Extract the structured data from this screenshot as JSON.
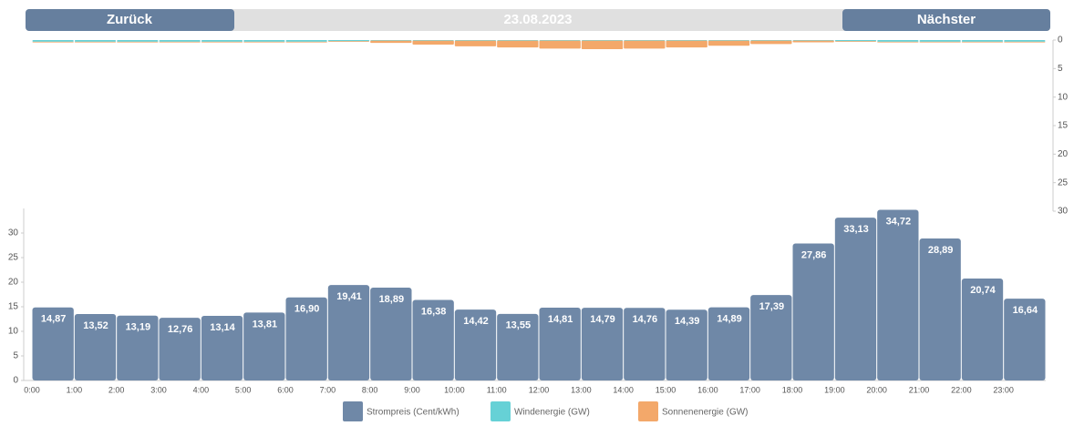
{
  "nav": {
    "back": "Zurück",
    "date": "23.08.2023",
    "next": "Nächster"
  },
  "chart_data": [
    {
      "type": "bar",
      "stacked": true,
      "inverted": true,
      "axis_side": "right",
      "ylim": [
        0,
        30
      ],
      "yticks": [
        0,
        5,
        10,
        15,
        20,
        25,
        30
      ],
      "series": [
        {
          "name": "Windenergie (GW)",
          "color": "#66d1d6",
          "values": [
            0.3,
            0.3,
            0.3,
            0.3,
            0.3,
            0.3,
            0.3,
            0.2,
            0.1,
            0.1,
            0.1,
            0.1,
            0.1,
            0.1,
            0.1,
            0.1,
            0.1,
            0.1,
            0.1,
            0.2,
            0.3,
            0.3,
            0.3,
            0.3
          ]
        },
        {
          "name": "Sonnenenergie (GW)",
          "color": "#f3a86a",
          "values": [
            0,
            0,
            0,
            0,
            0,
            0,
            0,
            0.1,
            0.4,
            0.7,
            1.0,
            1.2,
            1.4,
            1.5,
            1.4,
            1.2,
            0.9,
            0.6,
            0.3,
            0.1,
            0,
            0,
            0,
            0
          ]
        }
      ]
    },
    {
      "type": "bar",
      "axis_side": "left",
      "categories": [
        "0:00",
        "1:00",
        "2:00",
        "3:00",
        "4:00",
        "5:00",
        "6:00",
        "7:00",
        "8:00",
        "9:00",
        "10:00",
        "11:00",
        "12:00",
        "13:00",
        "14:00",
        "15:00",
        "16:00",
        "17:00",
        "18:00",
        "19:00",
        "20:00",
        "21:00",
        "22:00",
        "23:00"
      ],
      "ylim": [
        0,
        35
      ],
      "yticks": [
        0,
        5,
        10,
        15,
        20,
        25,
        30
      ],
      "series": [
        {
          "name": "Strompreis (Cent/kWh)",
          "color": "#6f88a7",
          "values": [
            14.87,
            13.52,
            13.19,
            12.76,
            13.14,
            13.81,
            16.9,
            19.41,
            18.89,
            16.38,
            14.42,
            13.55,
            14.81,
            14.79,
            14.76,
            14.39,
            14.89,
            17.39,
            27.86,
            33.13,
            34.72,
            28.89,
            20.74,
            16.64
          ],
          "value_labels": [
            "14,87",
            "13,52",
            "13,19",
            "12,76",
            "13,14",
            "13,81",
            "16,90",
            "19,41",
            "18,89",
            "16,38",
            "14,42",
            "13,55",
            "14,81",
            "14,79",
            "14,76",
            "14,39",
            "14,89",
            "17,39",
            "27,86",
            "33,13",
            "34,72",
            "28,89",
            "20,74",
            "16,64"
          ]
        }
      ]
    }
  ]
}
